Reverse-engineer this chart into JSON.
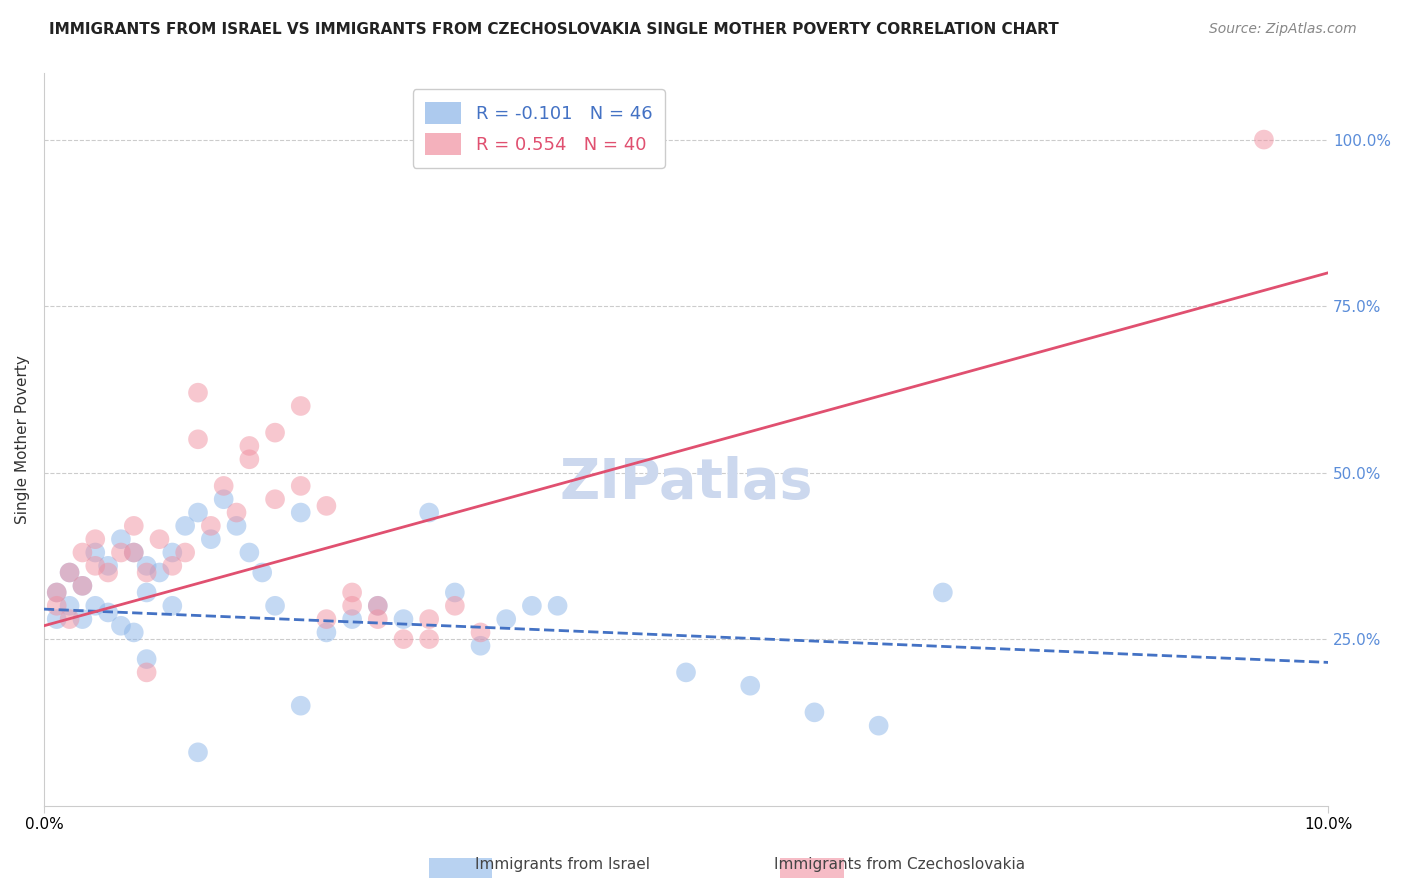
{
  "title": "IMMIGRANTS FROM ISRAEL VS IMMIGRANTS FROM CZECHOSLOVAKIA SINGLE MOTHER POVERTY CORRELATION CHART",
  "source": "Source: ZipAtlas.com",
  "ylabel": "Single Mother Poverty",
  "ytick_labels": [
    "100.0%",
    "75.0%",
    "50.0%",
    "25.0%"
  ],
  "ytick_values": [
    1.0,
    0.75,
    0.5,
    0.25
  ],
  "legend_label1": "R = -0.101   N = 46",
  "legend_label2": "R = 0.554   N = 40",
  "color_israel": "#8ab4e8",
  "color_czech": "#f090a0",
  "trendline_color_israel": "#4472c4",
  "trendline_color_czech": "#e05070",
  "watermark": "ZIPatlas",
  "watermark_color": "#ccd8ee",
  "israel_x": [
    0.001,
    0.001,
    0.002,
    0.002,
    0.003,
    0.003,
    0.004,
    0.004,
    0.005,
    0.005,
    0.006,
    0.006,
    0.007,
    0.007,
    0.008,
    0.008,
    0.009,
    0.01,
    0.01,
    0.011,
    0.012,
    0.013,
    0.014,
    0.015,
    0.016,
    0.017,
    0.018,
    0.02,
    0.022,
    0.024,
    0.026,
    0.028,
    0.03,
    0.032,
    0.034,
    0.036,
    0.038,
    0.04,
    0.05,
    0.055,
    0.06,
    0.065,
    0.07,
    0.008,
    0.012,
    0.02
  ],
  "israel_y": [
    0.32,
    0.28,
    0.3,
    0.35,
    0.28,
    0.33,
    0.38,
    0.3,
    0.36,
    0.29,
    0.4,
    0.27,
    0.38,
    0.26,
    0.36,
    0.32,
    0.35,
    0.38,
    0.3,
    0.42,
    0.44,
    0.4,
    0.46,
    0.42,
    0.38,
    0.35,
    0.3,
    0.44,
    0.26,
    0.28,
    0.3,
    0.28,
    0.44,
    0.32,
    0.24,
    0.28,
    0.3,
    0.3,
    0.2,
    0.18,
    0.14,
    0.12,
    0.32,
    0.22,
    0.08,
    0.15
  ],
  "czech_x": [
    0.001,
    0.001,
    0.002,
    0.002,
    0.003,
    0.003,
    0.004,
    0.004,
    0.005,
    0.006,
    0.007,
    0.007,
    0.008,
    0.009,
    0.01,
    0.011,
    0.012,
    0.013,
    0.014,
    0.015,
    0.016,
    0.018,
    0.02,
    0.022,
    0.024,
    0.026,
    0.028,
    0.03,
    0.032,
    0.034,
    0.016,
    0.018,
    0.02,
    0.012,
    0.022,
    0.024,
    0.026,
    0.008,
    0.03,
    0.095
  ],
  "czech_y": [
    0.32,
    0.3,
    0.35,
    0.28,
    0.38,
    0.33,
    0.36,
    0.4,
    0.35,
    0.38,
    0.42,
    0.38,
    0.35,
    0.4,
    0.36,
    0.38,
    0.55,
    0.42,
    0.48,
    0.44,
    0.52,
    0.46,
    0.48,
    0.28,
    0.3,
    0.28,
    0.25,
    0.28,
    0.3,
    0.26,
    0.54,
    0.56,
    0.6,
    0.62,
    0.45,
    0.32,
    0.3,
    0.2,
    0.25,
    1.0
  ],
  "xmin": 0.0,
  "xmax": 0.1,
  "ymin": 0.0,
  "ymax": 1.1,
  "title_fontsize": 11,
  "source_fontsize": 10,
  "axis_label_fontsize": 11,
  "tick_fontsize": 11,
  "legend_fontsize": 13,
  "watermark_fontsize": 40,
  "trendline_israel_x0": 0.0,
  "trendline_israel_y0": 0.295,
  "trendline_israel_x1": 0.1,
  "trendline_israel_y1": 0.215,
  "trendline_czech_x0": 0.0,
  "trendline_czech_y0": 0.27,
  "trendline_czech_x1": 0.1,
  "trendline_czech_y1": 0.8
}
